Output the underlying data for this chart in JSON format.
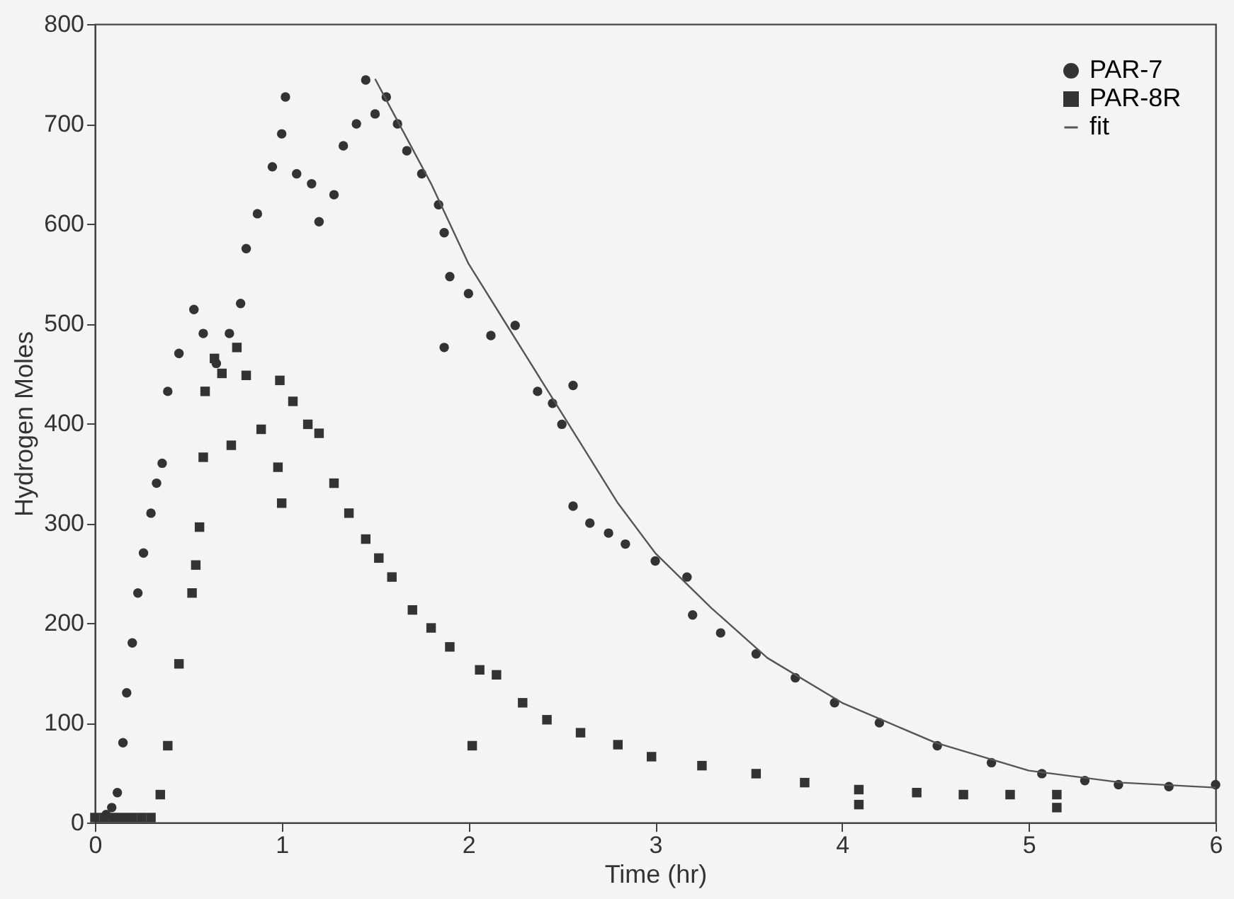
{
  "chart_data": {
    "type": "scatter",
    "xlabel": "Time (hr)",
    "ylabel": "Hydrogen Moles",
    "xlim": [
      0,
      6
    ],
    "ylim": [
      0,
      800
    ],
    "xticks": [
      0,
      1,
      2,
      3,
      4,
      5,
      6
    ],
    "yticks": [
      0,
      100,
      200,
      300,
      400,
      500,
      600,
      700,
      800
    ],
    "grid": false,
    "legend": "top right",
    "series": [
      {
        "name": "PAR-7",
        "color": "#333333",
        "marker": "circle",
        "x": [
          0.06,
          0.09,
          0.12,
          0.15,
          0.17,
          0.2,
          0.23,
          0.26,
          0.3,
          0.33,
          0.36,
          0.39,
          0.45,
          0.53,
          0.58,
          0.65,
          0.72,
          0.78,
          0.81,
          0.87,
          0.95,
          1.0,
          1.02,
          1.08,
          1.16,
          1.2,
          1.28,
          1.33,
          1.4,
          1.45,
          1.5,
          1.56,
          1.62,
          1.67,
          1.75,
          1.84,
          1.87,
          1.87,
          1.9,
          2.0,
          2.12,
          2.25,
          2.37,
          2.45,
          2.5,
          2.56,
          2.56,
          2.65,
          2.75,
          2.84,
          3.0,
          3.17,
          3.2,
          3.35,
          3.54,
          3.75,
          3.96,
          4.2,
          4.51,
          4.8,
          5.07,
          5.3,
          5.48,
          5.75,
          6.0
        ],
        "values": [
          8,
          15,
          30,
          80,
          130,
          180,
          230,
          270,
          310,
          340,
          360,
          432,
          470,
          514,
          490,
          460,
          490,
          520,
          575,
          610,
          657,
          690,
          727,
          650,
          640,
          602,
          629,
          678,
          700,
          744,
          710,
          727,
          700,
          673,
          650,
          619,
          591,
          476,
          547,
          530,
          488,
          498,
          432,
          420,
          399,
          438,
          317,
          300,
          290,
          279,
          262,
          246,
          208,
          190,
          169,
          145,
          120,
          100,
          77,
          60,
          49,
          42,
          38,
          36,
          38
        ]
      },
      {
        "name": "PAR-8R",
        "color": "#333333",
        "marker": "square",
        "x": [
          0,
          0.05,
          0.1,
          0.15,
          0.2,
          0.25,
          0.3,
          0.35,
          0.39,
          0.45,
          0.52,
          0.54,
          0.56,
          0.58,
          0.59,
          0.64,
          0.68,
          0.76,
          0.73,
          0.81,
          0.89,
          0.98,
          0.99,
          1.0,
          1.06,
          1.14,
          1.2,
          1.28,
          1.36,
          1.45,
          1.52,
          1.59,
          1.7,
          1.8,
          1.9,
          2.02,
          2.06,
          2.15,
          2.29,
          2.42,
          2.6,
          2.8,
          2.98,
          3.25,
          3.54,
          3.8,
          4.09,
          4.09,
          4.4,
          4.65,
          4.9,
          5.15,
          5.15
        ],
        "values": [
          5,
          5,
          5,
          5,
          5,
          5,
          5,
          28,
          77,
          159,
          230,
          258,
          296,
          366,
          432,
          465,
          450,
          476,
          378,
          448,
          394,
          356,
          443,
          320,
          422,
          399,
          390,
          340,
          310,
          284,
          265,
          246,
          213,
          195,
          176,
          77,
          153,
          148,
          120,
          103,
          90,
          78,
          66,
          57,
          49,
          40,
          33,
          18,
          30,
          28,
          28,
          28,
          15
        ]
      },
      {
        "name": "fit",
        "color": "#555555",
        "type": "line",
        "x": [
          1.5,
          1.6,
          1.8,
          2.0,
          2.2,
          2.4,
          2.6,
          2.8,
          3.0,
          3.3,
          3.6,
          4.0,
          4.5,
          5.0,
          5.5,
          6.0
        ],
        "values": [
          745,
          710,
          640,
          560,
          500,
          440,
          380,
          320,
          270,
          215,
          165,
          120,
          80,
          52,
          40,
          35
        ]
      }
    ]
  }
}
